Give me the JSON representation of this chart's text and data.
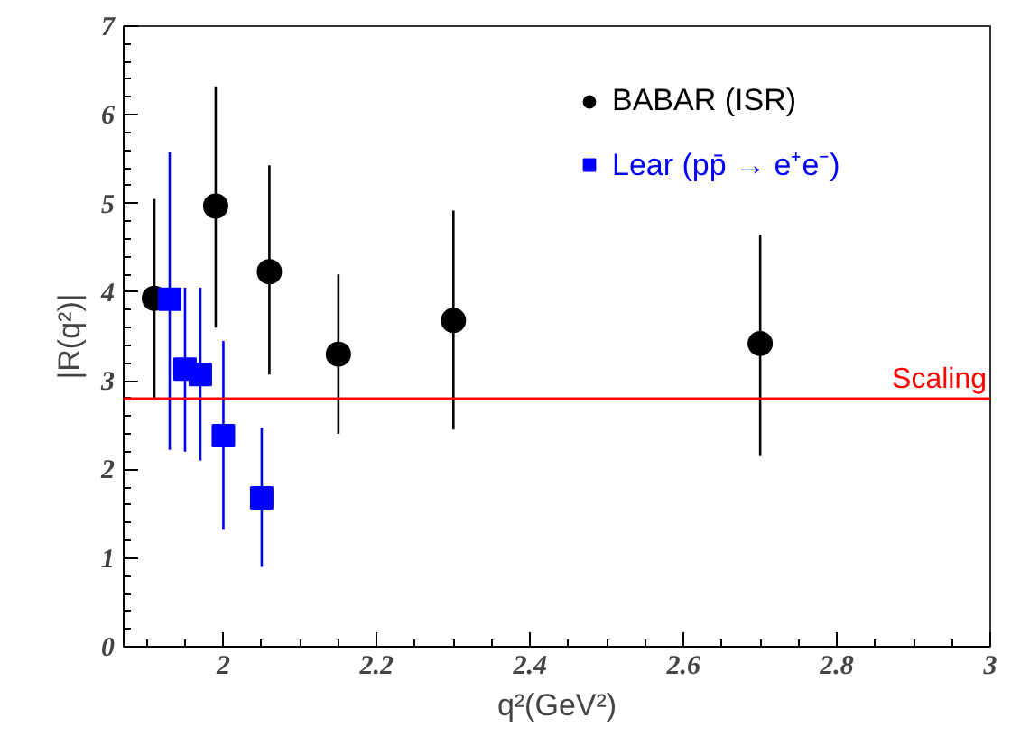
{
  "chart_data": {
    "type": "scatter",
    "xlabel": "q²(GeV²)",
    "ylabel": "|R(q²)|",
    "xlim": [
      1.87,
      3
    ],
    "xticks": [
      2,
      2.2,
      2.4,
      2.6,
      2.8,
      3
    ],
    "ylim": [
      0,
      7
    ],
    "yticks": [
      0,
      1,
      2,
      3,
      4,
      5,
      6,
      7
    ],
    "grid": false,
    "legend": "top right",
    "series": [
      {
        "name": "BABAR (ISR)",
        "color": "#000000",
        "marker": "circle",
        "x": [
          1.91,
          1.99,
          2.06,
          2.15,
          2.3,
          2.7
        ],
        "values": [
          3.93,
          4.97,
          4.23,
          3.3,
          3.68,
          3.42
        ],
        "errors": [
          [
            2.8,
            5.05
          ],
          [
            3.6,
            6.32
          ],
          [
            3.07,
            5.43
          ],
          [
            2.4,
            4.2
          ],
          [
            2.45,
            4.92
          ],
          [
            2.15,
            4.65
          ]
        ]
      },
      {
        "name": "Lear (pp̄ → e⁺e⁻)",
        "color": "#0000ff",
        "marker": "square",
        "x": [
          1.93,
          1.95,
          1.97,
          2.0,
          2.05
        ],
        "values": [
          3.92,
          3.13,
          3.07,
          2.38,
          1.68
        ],
        "errors": [
          [
            2.22,
            5.58
          ],
          [
            2.2,
            4.05
          ],
          [
            2.1,
            4.05
          ],
          [
            1.32,
            3.45
          ],
          [
            0.9,
            2.47
          ]
        ]
      }
    ],
    "ref_lines": [
      {
        "axis": "y",
        "value": 2.8,
        "label": "Scaling",
        "color": "#ff0000"
      }
    ]
  }
}
